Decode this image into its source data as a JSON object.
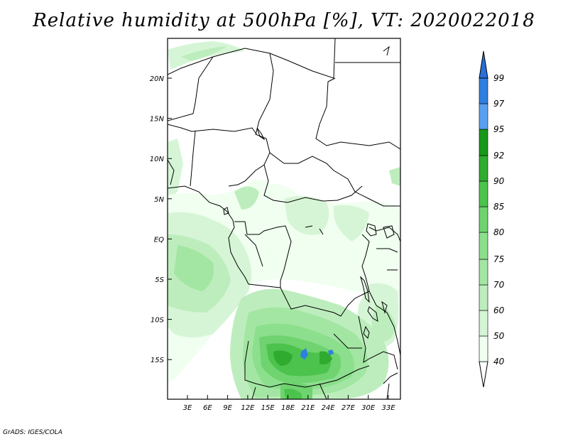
{
  "title": "Relative humidity at 500hPa [%], VT: 2020022018",
  "credit": "GrADS: IGES/COLA",
  "lat_labels": [
    "20N",
    "15N",
    "10N",
    "5N",
    "EQ",
    "5S",
    "10S",
    "15S"
  ],
  "lon_labels": [
    "3E",
    "6E",
    "9E",
    "12E",
    "15E",
    "18E",
    "21E",
    "24E",
    "27E",
    "30E",
    "33E"
  ],
  "colorbar": {
    "levels": [
      "40",
      "50",
      "60",
      "70",
      "75",
      "80",
      "85",
      "90",
      "92",
      "95",
      "97",
      "99"
    ],
    "colors": [
      "#f0fff0",
      "#d6f5d6",
      "#bdedbd",
      "#a3e6a3",
      "#8cdf8c",
      "#6fd36f",
      "#4cc34c",
      "#2fab2f",
      "#189818",
      "#5aa0f0",
      "#2f7fe0",
      "#1c5fc8",
      "#2a6fd8"
    ]
  }
}
